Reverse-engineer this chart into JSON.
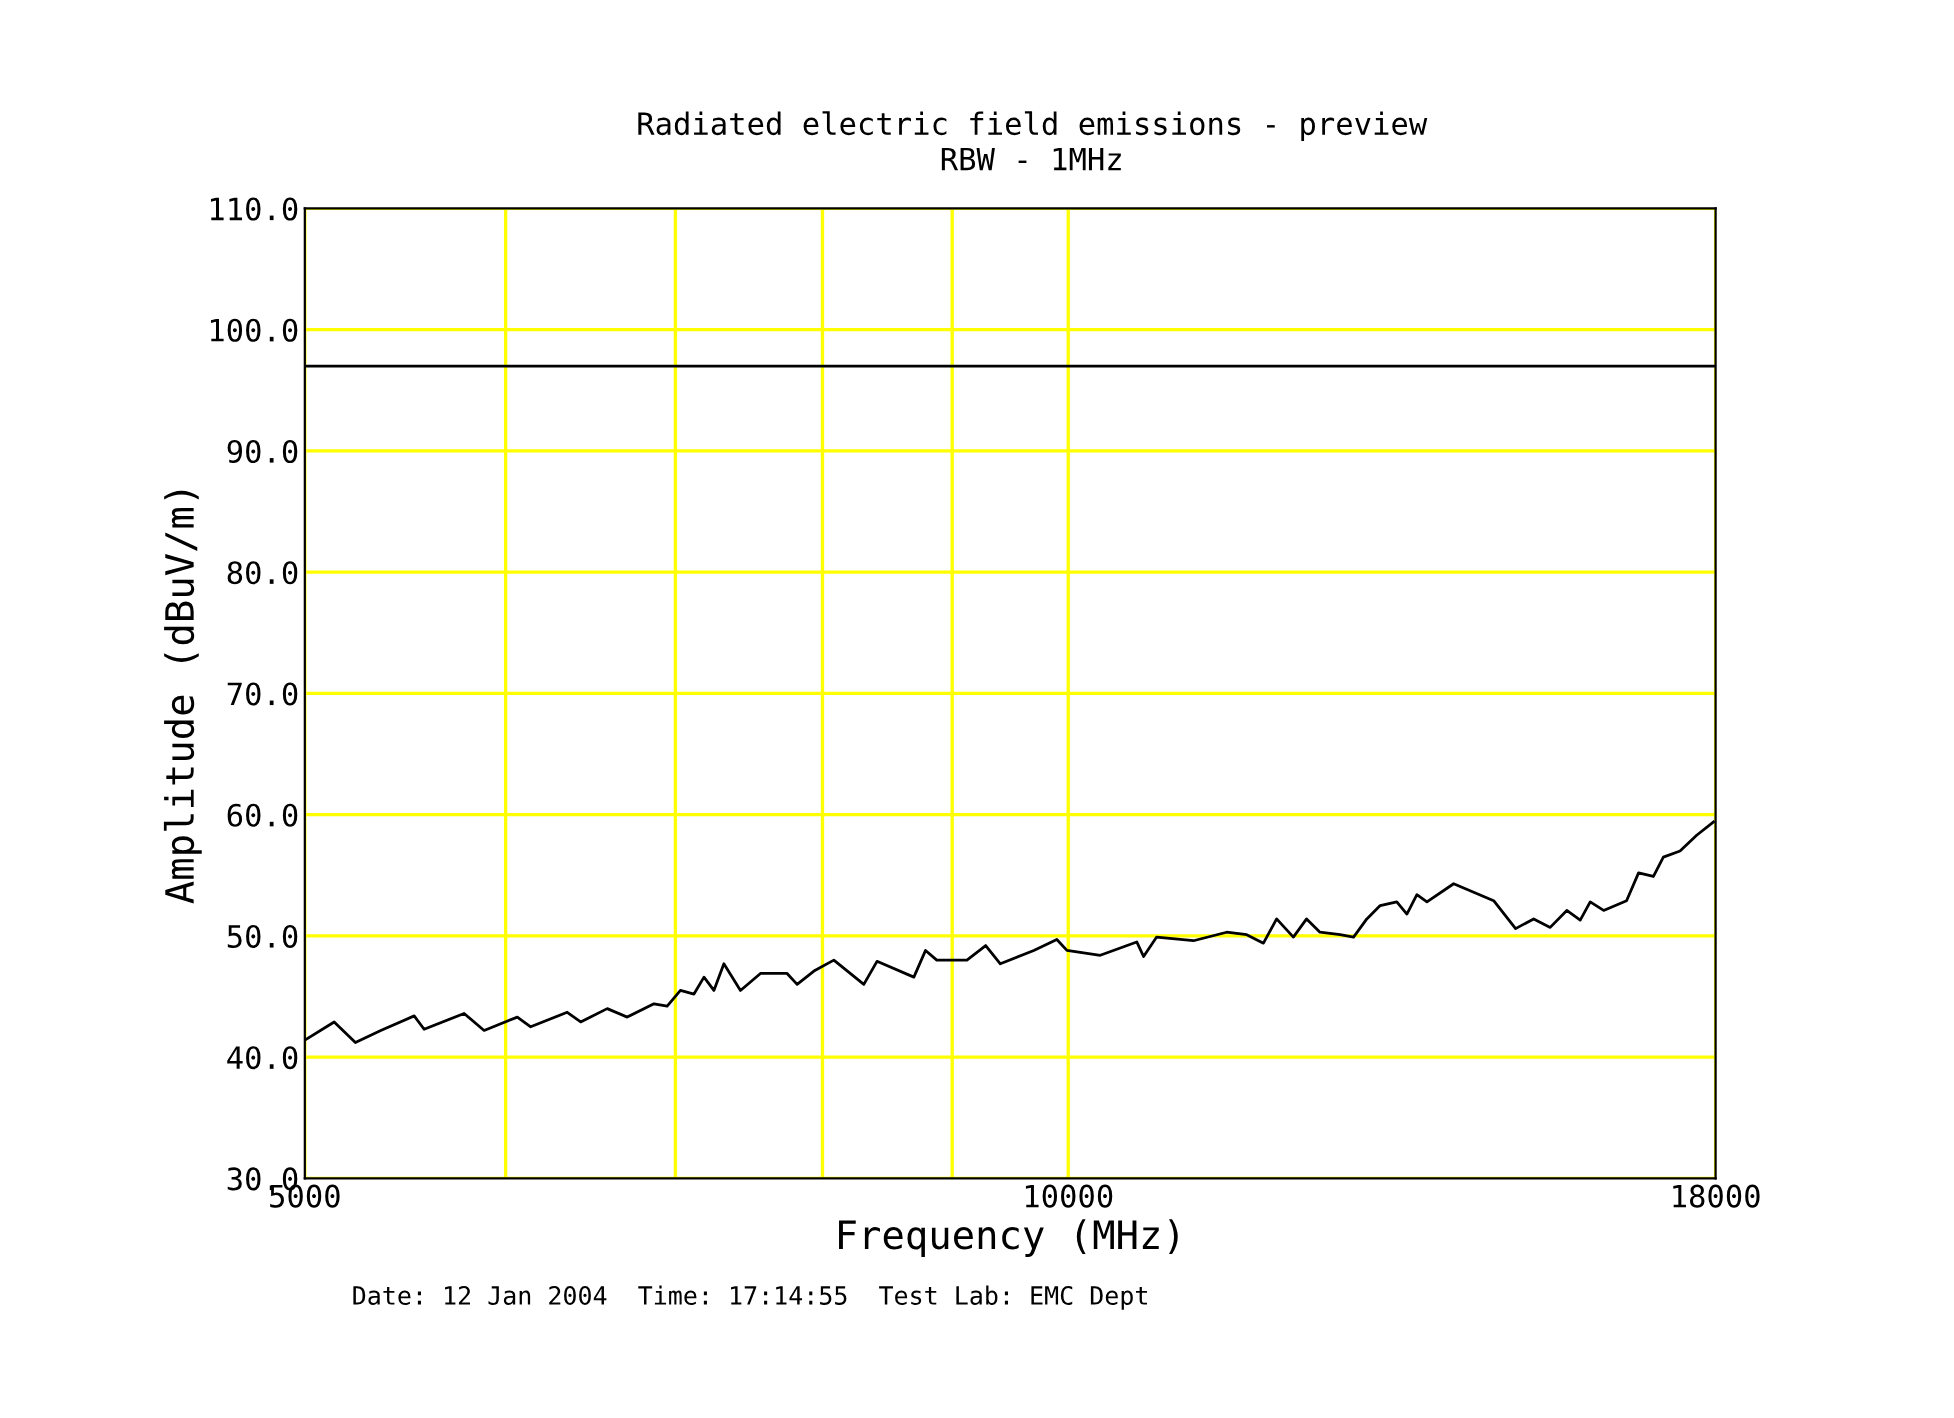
{
  "chart_data": {
    "type": "line",
    "title": "Radiated electric field emissions - preview",
    "subtitle": "RBW - 1MHz",
    "xlabel": "Frequency (MHz)",
    "ylabel": "Amplitude (dBuV/m)",
    "annotations": [
      "Date: 12 Jan 2004  Time: 17:14:55  Test Lab: EMC Dept"
    ],
    "log": "x",
    "grid": true,
    "marker": "none",
    "line_style": "solid",
    "x": [
      5000,
      5135,
      5235,
      5357,
      5522,
      5572,
      5778,
      5884,
      6064,
      6138,
      6345,
      6423,
      6580,
      6700,
      6865,
      6948,
      7032,
      7119,
      7184,
      7249,
      7315,
      7426,
      7562,
      7747,
      7818,
      7938,
      8083,
      8306,
      8406,
      8692,
      8785,
      8875,
      9121,
      9278,
      9402,
      9692,
      9897,
      9988,
      10295,
      10642,
      10708,
      10836,
      11204,
      11547,
      11759,
      11939,
      12083,
      12268,
      12416,
      12568,
      12800,
      12957,
      13114,
      13274,
      13476,
      13600,
      13724,
      13850,
      14190,
      14450,
      14715,
      15011,
      15259,
      15490,
      15725,
      15918,
      16063,
      16260,
      16602,
      16784,
      17012,
      17166,
      17428,
      17693,
      17965
    ],
    "series": [
      {
        "color": "#000000",
        "values": [
          41.4,
          42.9,
          41.2,
          42.2,
          43.4,
          42.3,
          43.6,
          42.2,
          43.3,
          42.5,
          43.7,
          42.9,
          44.0,
          43.3,
          44.4,
          44.2,
          45.5,
          45.2,
          46.6,
          45.5,
          47.7,
          45.5,
          46.9,
          46.9,
          46.0,
          47.1,
          48.0,
          46.0,
          47.9,
          46.6,
          48.8,
          48.0,
          48.0,
          49.2,
          47.7,
          48.8,
          49.7,
          48.8,
          48.4,
          49.5,
          48.3,
          49.9,
          49.6,
          50.3,
          50.1,
          49.4,
          51.4,
          49.9,
          51.4,
          50.3,
          50.1,
          49.9,
          51.4,
          52.5,
          52.8,
          51.8,
          53.4,
          52.8,
          54.3,
          53.6,
          52.9,
          50.6,
          51.4,
          50.7,
          52.1,
          51.3,
          52.8,
          52.1,
          52.9,
          55.2,
          54.9,
          56.5,
          57.0,
          58.3,
          59.4
        ]
      }
    ],
    "ref_lines": [
      {
        "axis": "y",
        "value": 97,
        "color": "#000000"
      }
    ],
    "xlim": [
      5000,
      18000
    ],
    "xticks": [
      5000,
      {
        "value": 6000,
        "label": null
      },
      {
        "value": 7000,
        "label": null
      },
      {
        "value": 8000,
        "label": null
      },
      {
        "value": 9000,
        "label": null
      },
      10000,
      18000
    ],
    "ylim": [
      30,
      110
    ],
    "yticks": [
      {
        "value": 30,
        "label": "30.0"
      },
      {
        "value": 40,
        "label": "40.0"
      },
      {
        "value": 50,
        "label": "50.0"
      },
      {
        "value": 60,
        "label": "60.0"
      },
      {
        "value": 70,
        "label": "70.0"
      },
      {
        "value": 80,
        "label": "80.0"
      },
      {
        "value": 90,
        "label": "90.0"
      },
      {
        "value": 100,
        "label": "100.0"
      },
      {
        "value": 110,
        "label": "110.0"
      }
    ]
  }
}
